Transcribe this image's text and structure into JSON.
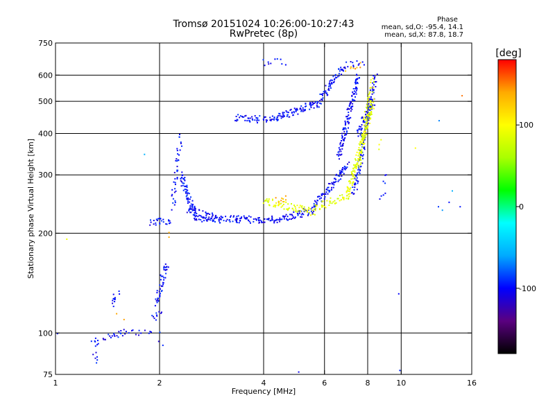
{
  "chart_data": {
    "type": "scatter",
    "title": "Tromsø 20151024 10:26:00-10:27:43",
    "subtitle": "RwPretec (8p)",
    "xlabel": "Frequency [MHz]",
    "ylabel": "Stationary phase Virtual Height [km]",
    "x_scale": "log",
    "y_scale": "log",
    "xlim": [
      1,
      16
    ],
    "ylim": [
      75,
      750
    ],
    "x_ticks": [
      1,
      2,
      4,
      6,
      8,
      10,
      16
    ],
    "y_ticks": [
      75,
      100,
      200,
      300,
      400,
      500,
      600,
      750
    ],
    "x_gridlines": [
      2,
      4,
      6,
      8,
      10
    ],
    "y_gridlines": [
      100,
      200,
      300,
      400,
      500,
      600
    ],
    "grid": true,
    "phase_stats": {
      "heading": "Phase",
      "line1": "mean, sd,O: -95.4, 14.1",
      "line2": "mean, sd,X:  87.8, 18.7"
    },
    "colorbar": {
      "label": "[deg]",
      "range": [
        -180,
        180
      ],
      "ticks": [
        100,
        0,
        -100
      ],
      "tick_labels": [
        "100",
        "0",
        "-100"
      ],
      "palette": [
        "#000000",
        "#5a0080",
        "#0000ff",
        "#00aaff",
        "#00ffff",
        "#00ff00",
        "#aaff00",
        "#ffff00",
        "#ffaa00",
        "#ff0000"
      ]
    },
    "series": [
      {
        "phase": -100,
        "segments": [
          {
            "x": [
              1.0,
              1.03
            ],
            "y": [
              100,
              100
            ],
            "n": 1
          },
          {
            "x": [
              1.3,
              1.31
            ],
            "y": [
              87,
              82
            ],
            "n": 6
          },
          {
            "x": [
              1.28,
              1.33
            ],
            "y": [
              97,
              91
            ],
            "n": 8
          },
          {
            "x": [
              1.38,
              1.6
            ],
            "y": [
              96,
              100
            ],
            "n": 20
          },
          {
            "x": [
              1.45,
              1.52
            ],
            "y": [
              122,
              132
            ],
            "n": 12
          },
          {
            "x": [
              1.6,
              1.9
            ],
            "y": [
              100,
              101
            ],
            "n": 12
          },
          {
            "x": [
              1.9,
              2.02
            ],
            "y": [
              111,
              114
            ],
            "n": 10
          },
          {
            "x": [
              1.95,
              2.1
            ],
            "y": [
              122,
              162
            ],
            "n": 45
          },
          {
            "x": [
              2.0,
              2.02
            ],
            "y": [
              98,
              93
            ],
            "n": 3
          },
          {
            "x": [
              1.88,
              2.15
            ],
            "y": [
              216,
              218
            ],
            "n": 25
          },
          {
            "x": [
              2.18,
              2.3
            ],
            "y": [
              240,
              390
            ],
            "n": 40
          },
          {
            "x": [
              2.3,
              2.55
            ],
            "y": [
              300,
              220
            ],
            "n": 70
          },
          {
            "x": [
              2.4,
              3.0
            ],
            "y": [
              235,
              220
            ],
            "n": 50
          },
          {
            "x": [
              2.6,
              3.4
            ],
            "y": [
              222,
              220
            ],
            "n": 45
          },
          {
            "x": [
              3.3,
              4.4
            ],
            "y": [
              220,
              220
            ],
            "n": 60
          },
          {
            "x": [
              4.4,
              5.6
            ],
            "y": [
              220,
              235
            ],
            "n": 60
          },
          {
            "x": [
              5.6,
              7.0
            ],
            "y": [
              240,
              320
            ],
            "n": 90
          },
          {
            "x": [
              6.6,
              7.5
            ],
            "y": [
              340,
              600
            ],
            "n": 120
          },
          {
            "x": [
              3.3,
              4.2
            ],
            "y": [
              445,
              440
            ],
            "n": 45
          },
          {
            "x": [
              4.2,
              5.8
            ],
            "y": [
              440,
              495
            ],
            "n": 90
          },
          {
            "x": [
              5.8,
              6.8
            ],
            "y": [
              500,
              635
            ],
            "n": 60
          },
          {
            "x": [
              6.8,
              7.8
            ],
            "y": [
              640,
              660
            ],
            "n": 12
          },
          {
            "x": [
              4.0,
              4.6
            ],
            "y": [
              655,
              660
            ],
            "n": 10
          },
          {
            "x": [
              7.3,
              8.4
            ],
            "y": [
              260,
              600
            ],
            "n": 120
          },
          {
            "x": [
              7.5,
              8.3
            ],
            "y": [
              400,
              500
            ],
            "n": 50
          },
          {
            "x": [
              8.8,
              8.95
            ],
            "y": [
              250,
              300
            ],
            "n": 8
          },
          {
            "x": [
              5.0,
              5.02
            ],
            "y": [
              78,
              78
            ],
            "n": 1
          },
          {
            "x": [
              9.95,
              10.0
            ],
            "y": [
              132,
              78
            ],
            "n": 2
          },
          {
            "x": [
              13.0,
              15.0
            ],
            "y": [
              240,
              245
            ],
            "n": 3
          }
        ]
      },
      {
        "phase": -55,
        "segments": [
          {
            "x": [
              1.8,
              1.85
            ],
            "y": [
              350,
              350
            ],
            "n": 1
          },
          {
            "x": [
              12.5,
              13.0
            ],
            "y": [
              430,
              430
            ],
            "n": 1
          },
          {
            "x": [
              13.0,
              14.0
            ],
            "y": [
              240,
              270
            ],
            "n": 2
          }
        ]
      },
      {
        "phase": 88,
        "segments": [
          {
            "x": [
              1.06,
              1.1
            ],
            "y": [
              190,
              190
            ],
            "n": 1
          },
          {
            "x": [
              4.0,
              5.6
            ],
            "y": [
              250,
              232
            ],
            "n": 70
          },
          {
            "x": [
              5.6,
              7.0
            ],
            "y": [
              238,
              260
            ],
            "n": 40
          },
          {
            "x": [
              7.0,
              8.3
            ],
            "y": [
              260,
              500
            ],
            "n": 150
          },
          {
            "x": [
              7.5,
              8.3
            ],
            "y": [
              320,
              580
            ],
            "n": 60
          },
          {
            "x": [
              8.5,
              8.7
            ],
            "y": [
              360,
              375
            ],
            "n": 3
          },
          {
            "x": [
              10.8,
              11.0
            ],
            "y": [
              370,
              370
            ],
            "n": 1
          }
        ]
      },
      {
        "phase": 140,
        "segments": [
          {
            "x": [
              4.4,
              4.6
            ],
            "y": [
              252,
              255
            ],
            "n": 8
          },
          {
            "x": [
              7.0,
              7.6
            ],
            "y": [
              620,
              640
            ],
            "n": 8
          },
          {
            "x": [
              2.1,
              2.15
            ],
            "y": [
              198,
              196
            ],
            "n": 2
          },
          {
            "x": [
              1.5,
              1.6
            ],
            "y": [
              112,
              110
            ],
            "n": 2
          },
          {
            "x": [
              15.0,
              15.2
            ],
            "y": [
              530,
              530
            ],
            "n": 1
          }
        ]
      }
    ]
  }
}
